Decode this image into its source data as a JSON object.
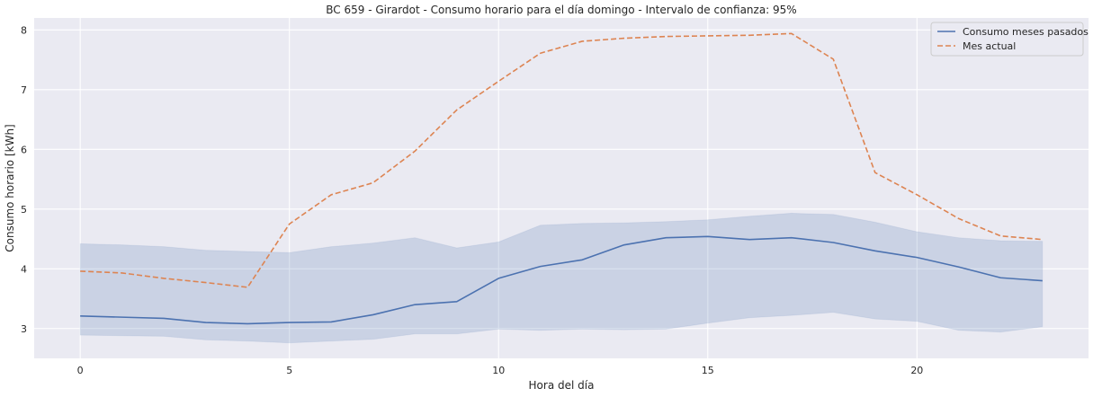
{
  "chart_data": {
    "type": "line",
    "title": "BC 659 - Girardot - Consumo horario para el día domingo - Intervalo de confianza: 95%",
    "xlabel": "Hora del día",
    "ylabel": "Consumo horario [kWh]",
    "xlim": [
      -1.1,
      24.1
    ],
    "ylim": [
      2.5,
      8.2
    ],
    "xticks": [
      0,
      5,
      10,
      15,
      20
    ],
    "yticks": [
      3,
      4,
      5,
      6,
      7,
      8
    ],
    "grid": true,
    "legend_position": "top-right",
    "x": [
      0,
      1,
      2,
      3,
      4,
      5,
      6,
      7,
      8,
      9,
      10,
      11,
      12,
      13,
      14,
      15,
      16,
      17,
      18,
      19,
      20,
      21,
      22,
      23
    ],
    "series": [
      {
        "name": "Consumo meses pasados",
        "style": "solid",
        "color": "#4c72b0",
        "values": [
          3.21,
          3.19,
          3.17,
          3.1,
          3.08,
          3.1,
          3.11,
          3.23,
          3.4,
          3.45,
          3.84,
          4.04,
          4.15,
          4.4,
          4.52,
          4.54,
          4.49,
          4.52,
          4.44,
          4.3,
          4.19,
          4.03,
          3.85,
          3.8
        ],
        "ci_lower": [
          2.89,
          2.88,
          2.87,
          2.81,
          2.79,
          2.76,
          2.79,
          2.82,
          2.91,
          2.91,
          2.99,
          2.97,
          2.99,
          2.98,
          2.99,
          3.09,
          3.18,
          3.22,
          3.27,
          3.16,
          3.12,
          2.97,
          2.94,
          3.03
        ],
        "ci_upper": [
          4.42,
          4.4,
          4.37,
          4.31,
          4.29,
          4.27,
          4.37,
          4.43,
          4.52,
          4.35,
          4.45,
          4.73,
          4.76,
          4.77,
          4.79,
          4.82,
          4.88,
          4.93,
          4.91,
          4.78,
          4.62,
          4.52,
          4.47,
          4.46
        ]
      },
      {
        "name": "Mes actual",
        "style": "dashed",
        "color": "#dd8452",
        "values": [
          3.96,
          3.93,
          3.84,
          3.77,
          3.69,
          4.75,
          5.24,
          5.44,
          5.97,
          6.66,
          7.14,
          7.61,
          7.81,
          7.86,
          7.89,
          7.9,
          7.91,
          7.94,
          7.51,
          5.61,
          5.24,
          4.84,
          4.55,
          4.49
        ]
      }
    ],
    "colors": {
      "background": "#eaeaf2",
      "grid": "#ffffff",
      "ci_fill": "#4c72b0"
    }
  }
}
